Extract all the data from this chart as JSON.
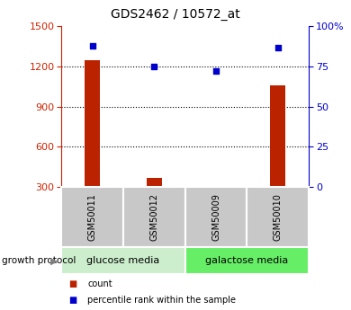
{
  "title": "GDS2462 / 10572_at",
  "samples": [
    "GSM50011",
    "GSM50012",
    "GSM50009",
    "GSM50010"
  ],
  "counts": [
    1250,
    370,
    310,
    1060
  ],
  "percentiles": [
    88,
    75,
    72,
    87
  ],
  "left_ylim": [
    300,
    1500
  ],
  "left_yticks": [
    300,
    600,
    900,
    1200,
    1500
  ],
  "right_ylim": [
    0,
    100
  ],
  "right_yticks": [
    0,
    25,
    50,
    75,
    100
  ],
  "right_yticklabels": [
    "0",
    "25",
    "50",
    "75",
    "100%"
  ],
  "bar_color": "#bb2200",
  "marker_color": "#0000cc",
  "groups": [
    {
      "label": "glucose media",
      "indices": [
        0,
        1
      ],
      "color": "#cceecc"
    },
    {
      "label": "galactose media",
      "indices": [
        2,
        3
      ],
      "color": "#66ee66"
    }
  ],
  "group_row_label": "growth protocol",
  "legend_items": [
    {
      "label": "count",
      "color": "#bb2200"
    },
    {
      "label": "percentile rank within the sample",
      "color": "#0000cc"
    }
  ],
  "left_tick_color": "#cc2200",
  "right_tick_color": "#0000cc",
  "bar_width": 0.25,
  "grid_yticks": [
    600,
    900,
    1200
  ]
}
